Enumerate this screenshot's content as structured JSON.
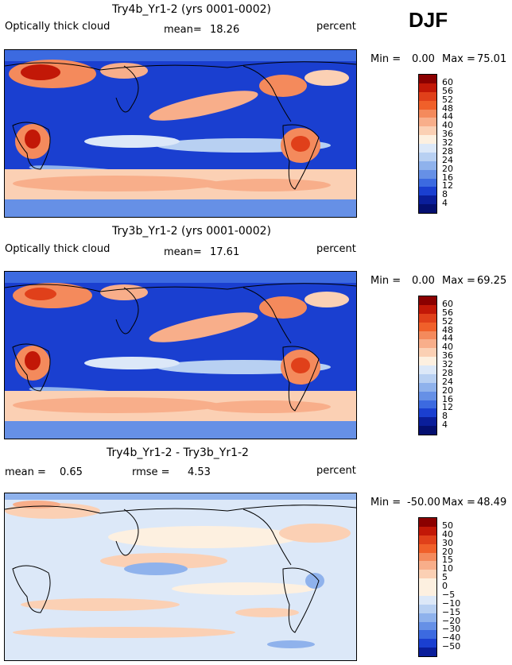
{
  "season": "DJF",
  "panels": [
    {
      "title": "Try4b_Yr1-2 (yrs 0001-0002)",
      "variable": "Optically thick cloud",
      "stat1_label": "mean=",
      "stat1_value": "18.26",
      "units": "percent",
      "min_label": "Min =",
      "min_value": "0.00",
      "max_label": "Max =",
      "max_value": "75.01",
      "levels": [
        "60",
        "56",
        "52",
        "48",
        "44",
        "40",
        "36",
        "32",
        "28",
        "24",
        "20",
        "16",
        "12",
        "8",
        "4"
      ]
    },
    {
      "title": "Try3b_Yr1-2 (yrs 0001-0002)",
      "variable": "Optically thick cloud",
      "stat1_label": "mean=",
      "stat1_value": "17.61",
      "units": "percent",
      "min_label": "Min =",
      "min_value": "0.00",
      "max_label": "Max =",
      "max_value": "69.25",
      "levels": [
        "60",
        "56",
        "52",
        "48",
        "44",
        "40",
        "36",
        "32",
        "28",
        "24",
        "20",
        "16",
        "12",
        "8",
        "4"
      ]
    },
    {
      "title": "Try4b_Yr1-2 - Try3b_Yr1-2",
      "stat1_label": "mean =",
      "stat1_value": "0.65",
      "stat2_label": "rmse =",
      "stat2_value": "4.53",
      "units": "percent",
      "min_label": "Min =",
      "min_value": "-50.00",
      "max_label": "Max =",
      "max_value": "48.49",
      "levels": [
        "50",
        "40",
        "30",
        "20",
        "15",
        "10",
        "5",
        "0",
        "−5",
        "−10",
        "−15",
        "−20",
        "−30",
        "−40",
        "−50"
      ]
    }
  ],
  "colors": {
    "abs_scale": [
      "#8b0000",
      "#c21807",
      "#e0401a",
      "#f0602a",
      "#f48a5c",
      "#f8ae8a",
      "#fbd0b4",
      "#fdf0e0",
      "#dce8f8",
      "#b8d0f2",
      "#8fb2ec",
      "#6690e6",
      "#3c6ae0",
      "#1a3fd0",
      "#0a1e9a",
      "#040f70"
    ],
    "diff_scale": [
      "#8b0000",
      "#c21807",
      "#e0401a",
      "#f0602a",
      "#f48a5c",
      "#f8ae8a",
      "#fbd0b4",
      "#fdf0e0",
      "#fdf0e0",
      "#dce8f8",
      "#b8d0f2",
      "#8fb2ec",
      "#6690e6",
      "#3c6ae0",
      "#1a3fd0",
      "#0a1e9a"
    ]
  }
}
